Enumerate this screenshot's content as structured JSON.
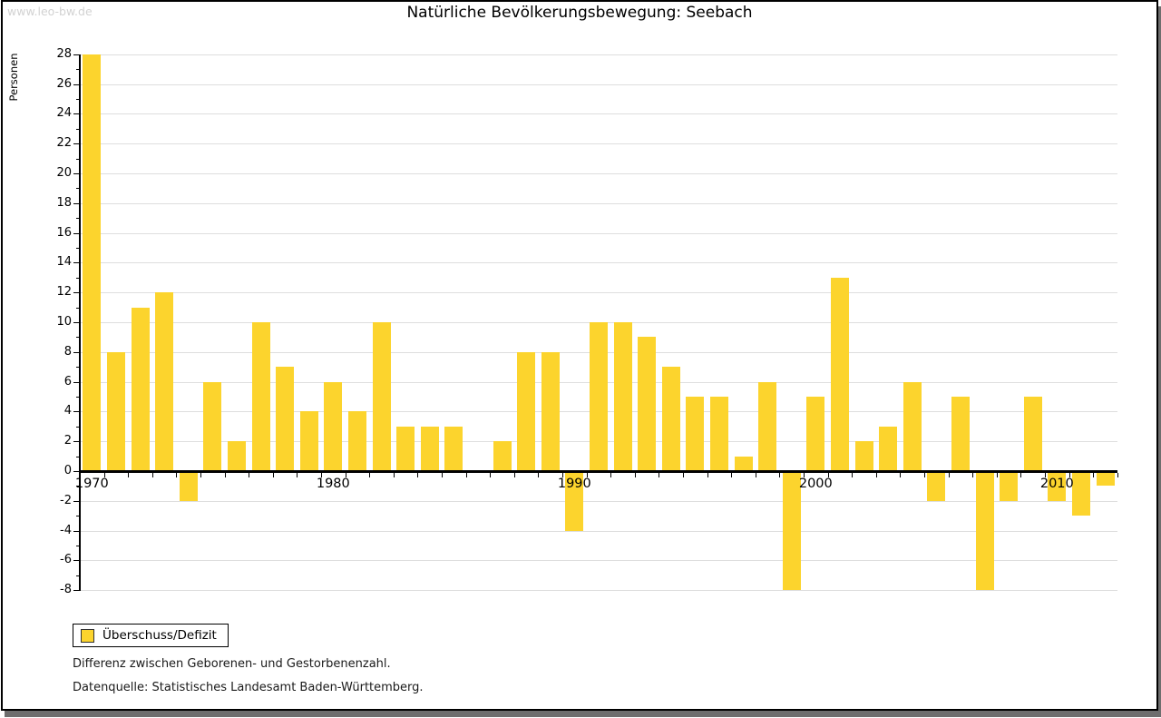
{
  "watermark": "www.leo-bw.de",
  "title": "Natürliche Bevölkerungsbewegung: Seebach",
  "legend": {
    "label": "Überschuss/Defizit"
  },
  "footnotes": [
    "Differenz zwischen Geborenen- und Gestorbenenzahl.",
    "Datenquelle: Statistisches Landesamt Baden-Württemberg."
  ],
  "chart_data": {
    "type": "bar",
    "title": "Natürliche Bevölkerungsbewegung: Seebach",
    "ylabel": "Personen",
    "series_name": "Überschuss/Defizit",
    "years": [
      1970,
      1971,
      1972,
      1973,
      1974,
      1975,
      1976,
      1977,
      1978,
      1979,
      1980,
      1981,
      1982,
      1983,
      1984,
      1985,
      1986,
      1987,
      1988,
      1989,
      1990,
      1991,
      1992,
      1993,
      1994,
      1995,
      1996,
      1997,
      1998,
      1999,
      2000,
      2001,
      2002,
      2003,
      2004,
      2005,
      2006,
      2007,
      2008,
      2009,
      2010,
      2011,
      2012
    ],
    "values": [
      28,
      8,
      11,
      12,
      -2,
      6,
      2,
      10,
      7,
      4,
      6,
      4,
      10,
      3,
      3,
      3,
      0,
      2,
      8,
      8,
      -4,
      10,
      10,
      9,
      7,
      5,
      5,
      1,
      6,
      -8,
      5,
      13,
      2,
      3,
      6,
      -2,
      5,
      -8,
      -2,
      5,
      -2,
      -3,
      -1
    ],
    "ylim": [
      -8,
      28
    ],
    "ytick_step": 2,
    "ytick_minor_step": 1,
    "xtick_labels": [
      1970,
      1980,
      1990,
      2000,
      2010
    ],
    "grid": true,
    "legend_position": "bottom-left",
    "bar_color": "#fcd42d",
    "grid_color": "#dedede",
    "axis_color": "#000000"
  }
}
